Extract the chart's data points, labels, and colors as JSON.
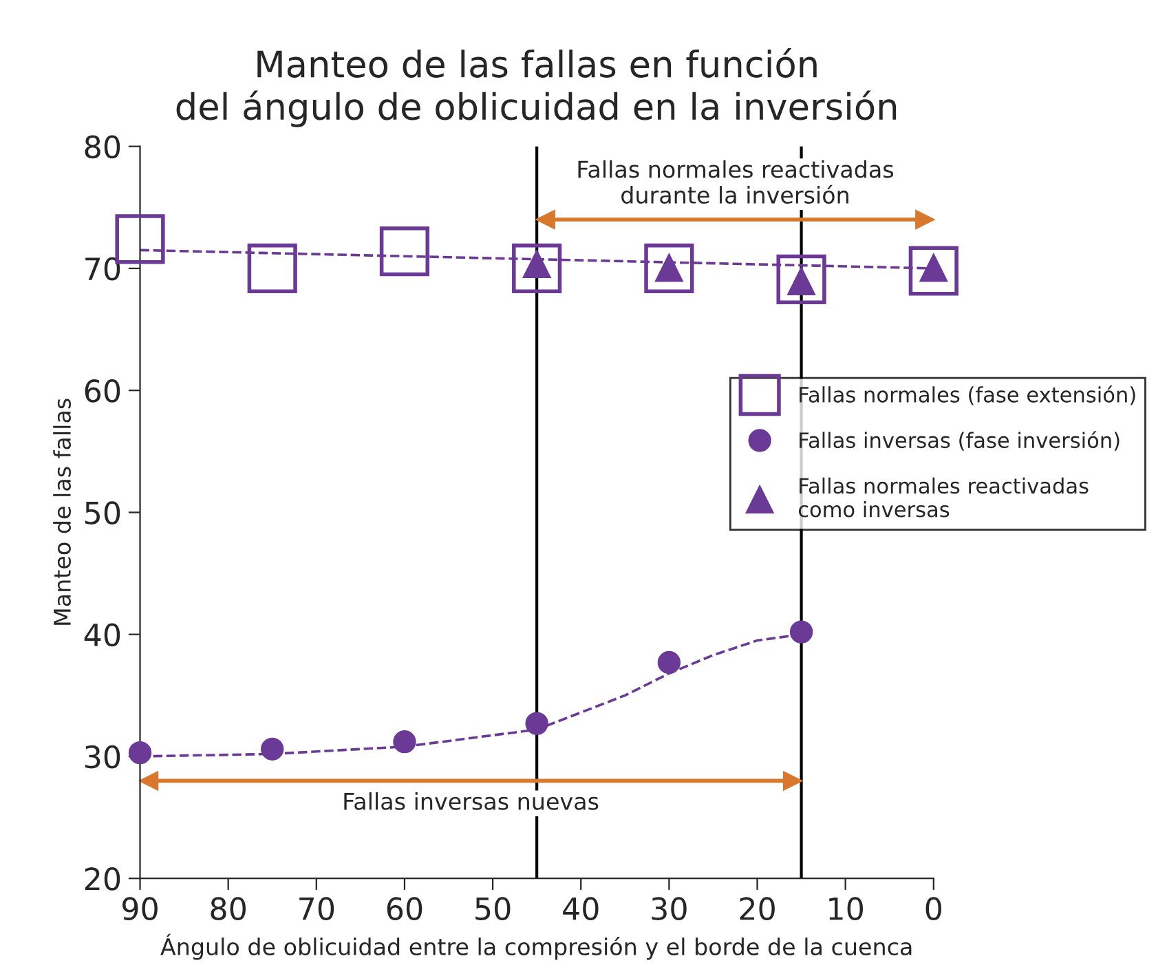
{
  "chart_data": {
    "type": "scatter",
    "title": "Manteo de las fallas en función\ndel ángulo de oblicuidad en la inversión",
    "xlabel": "Ángulo de oblicuidad entre la compresión y el borde de la cuenca",
    "ylabel": "Manteo de las fallas",
    "xlim": [
      90,
      0
    ],
    "xticks": [
      90,
      80,
      70,
      60,
      50,
      40,
      30,
      20,
      10,
      0
    ],
    "ylim": [
      20,
      80
    ],
    "yticks": [
      20,
      30,
      40,
      50,
      60,
      70,
      80
    ],
    "grid": false,
    "legend": "right",
    "series": [
      {
        "type": "line",
        "x": [
          90,
          0
        ],
        "values": [
          71.5,
          70
        ],
        "color": "#6b3a97",
        "marker": "none",
        "line_style": "dashed"
      },
      {
        "type": "line",
        "x": [
          90,
          75,
          60,
          45,
          35,
          30,
          25,
          20,
          15
        ],
        "values": [
          30,
          30.2,
          30.8,
          32.2,
          35,
          36.8,
          38.3,
          39.5,
          40
        ],
        "color": "#6b3a97",
        "marker": "none",
        "line_style": "dashed"
      },
      {
        "name": "Fallas normales (fase extensión)",
        "x": [
          90,
          75,
          60,
          45,
          30,
          15,
          0
        ],
        "values": [
          72.4,
          70,
          71.4,
          70,
          70,
          69.1,
          69.8
        ],
        "color": "#6b3a97",
        "marker": "square"
      },
      {
        "name": "Fallas inversas (fase inversión)",
        "x": [
          90,
          75,
          60,
          45,
          30,
          15
        ],
        "values": [
          30.3,
          30.6,
          31.2,
          32.7,
          37.7,
          40.2
        ],
        "color": "#6b3a97",
        "marker": "circle"
      },
      {
        "name": "Fallas normales reactivadas\ncomo inversas",
        "x": [
          45,
          30,
          15,
          0
        ],
        "values": [
          70.3,
          70,
          68.9,
          70
        ],
        "color": "#6b3a97",
        "marker": "triangle"
      },
      {
        "type": "line",
        "x": [
          44,
          1
        ],
        "values": [
          74,
          74
        ],
        "color": "#d9782d",
        "marker": "triangle",
        "line_style": "solid"
      },
      {
        "type": "line",
        "x": [
          89,
          16
        ],
        "values": [
          28,
          28
        ],
        "color": "#d9782d",
        "marker": "triangle",
        "line_style": "solid"
      }
    ],
    "annotations": [
      {
        "text": "Fallas normales reactivadas\ndurante la inversión",
        "x": 22.5,
        "y": 74
      },
      {
        "text": "Fallas inversas nuevas",
        "x": 52.5,
        "y": 28
      }
    ],
    "ref_lines": [
      {
        "axis": "x",
        "value": 45,
        "color": "#000000"
      },
      {
        "axis": "x",
        "value": 15,
        "color": "#000000"
      }
    ]
  }
}
